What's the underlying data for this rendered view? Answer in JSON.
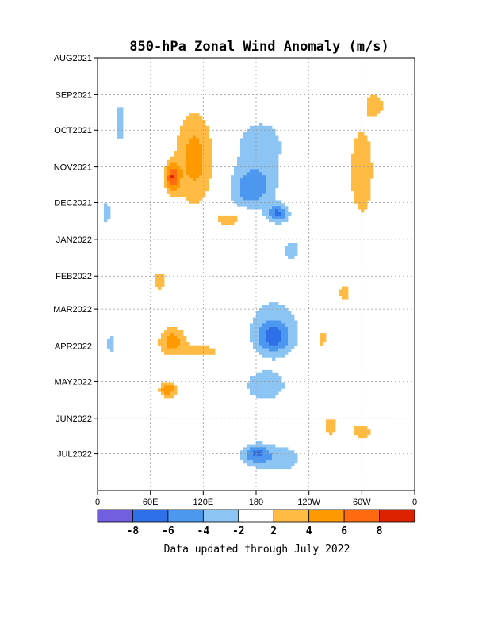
{
  "chart_data": {
    "type": "heatmap",
    "title": "850-hPa Zonal Wind Anomaly (m/s)",
    "xlabel": "",
    "ylabel": "",
    "x_ticks": [
      "0",
      "60E",
      "120E",
      "180",
      "120W",
      "60W",
      "0"
    ],
    "y_ticks": [
      "AUG2021",
      "SEP2021",
      "OCT2021",
      "NOV2021",
      "DEC2021",
      "JAN2022",
      "FEB2022",
      "MAR2022",
      "APR2022",
      "MAY2022",
      "JUN2022",
      "JUL2022"
    ],
    "grid": true,
    "colorbar": {
      "tick_labels": [
        "-8",
        "-6",
        "-4",
        "-2",
        "2",
        "4",
        "6",
        "8"
      ],
      "colors": [
        "#7060e0",
        "#2f6fe8",
        "#4c98f0",
        "#8cc4f4",
        "#ffffff",
        "#ffbb44",
        "#ff9900",
        "#ff6a10",
        "#dd2200"
      ]
    },
    "note": "Data updated through July 2022",
    "anomaly_blobs": [
      {
        "lon": 110,
        "date": "2021-10-25",
        "lon_half_width": 22,
        "days_half_width": 40,
        "value": 5
      },
      {
        "lon": 85,
        "date": "2021-11-10",
        "lon_half_width": 8,
        "days_half_width": 12,
        "value": 7
      },
      {
        "lon": 150,
        "date": "2021-12-15",
        "lon_half_width": 20,
        "days_half_width": 8,
        "value": 3
      },
      {
        "lon": 70,
        "date": "2022-02-05",
        "lon_half_width": 10,
        "days_half_width": 10,
        "value": 3
      },
      {
        "lon": 85,
        "date": "2022-03-28",
        "lon_half_width": 16,
        "days_half_width": 12,
        "value": 5
      },
      {
        "lon": 120,
        "date": "2022-04-05",
        "lon_half_width": 22,
        "days_half_width": 6,
        "value": 3
      },
      {
        "lon": 80,
        "date": "2022-05-08",
        "lon_half_width": 10,
        "days_half_width": 6,
        "value": 6
      },
      {
        "lon": 315,
        "date": "2021-09-10",
        "lon_half_width": 12,
        "days_half_width": 12,
        "value": 3
      },
      {
        "lon": 300,
        "date": "2021-11-05",
        "lon_half_width": 14,
        "days_half_width": 40,
        "value": 4
      },
      {
        "lon": 280,
        "date": "2022-02-15",
        "lon_half_width": 8,
        "days_half_width": 8,
        "value": 3
      },
      {
        "lon": 255,
        "date": "2022-03-25",
        "lon_half_width": 8,
        "days_half_width": 10,
        "value": 3
      },
      {
        "lon": 265,
        "date": "2022-06-08",
        "lon_half_width": 10,
        "days_half_width": 10,
        "value": 3
      },
      {
        "lon": 300,
        "date": "2022-06-12",
        "lon_half_width": 16,
        "days_half_width": 8,
        "value": 3
      },
      {
        "lon": 185,
        "date": "2021-10-15",
        "lon_half_width": 35,
        "days_half_width": 30,
        "value": -3
      },
      {
        "lon": 175,
        "date": "2021-11-20",
        "lon_half_width": 25,
        "days_half_width": 18,
        "value": -5
      },
      {
        "lon": 205,
        "date": "2021-12-10",
        "lon_half_width": 12,
        "days_half_width": 8,
        "value": -6
      },
      {
        "lon": 200,
        "date": "2022-03-15",
        "lon_half_width": 35,
        "days_half_width": 30,
        "value": -3
      },
      {
        "lon": 200,
        "date": "2022-03-25",
        "lon_half_width": 18,
        "days_half_width": 12,
        "value": -5
      },
      {
        "lon": 190,
        "date": "2022-05-05",
        "lon_half_width": 30,
        "days_half_width": 15,
        "value": -3
      },
      {
        "lon": 205,
        "date": "2022-07-05",
        "lon_half_width": 35,
        "days_half_width": 15,
        "value": -3
      },
      {
        "lon": 180,
        "date": "2022-07-01",
        "lon_half_width": 15,
        "days_half_width": 8,
        "value": -5
      },
      {
        "lon": 220,
        "date": "2022-01-10",
        "lon_half_width": 12,
        "days_half_width": 10,
        "value": -3
      },
      {
        "lon": 10,
        "date": "2021-12-10",
        "lon_half_width": 6,
        "days_half_width": 12,
        "value": -3
      },
      {
        "lon": 25,
        "date": "2021-09-25",
        "lon_half_width": 5,
        "days_half_width": 25,
        "value": -3
      },
      {
        "lon": 15,
        "date": "2022-03-30",
        "lon_half_width": 6,
        "days_half_width": 10,
        "value": -3
      }
    ]
  }
}
